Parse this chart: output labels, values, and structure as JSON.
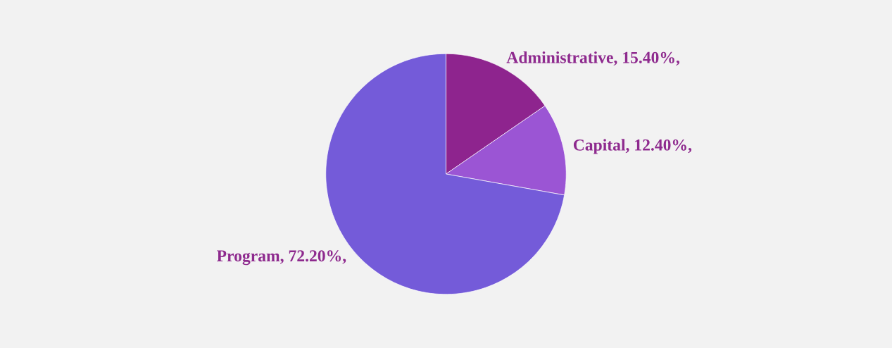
{
  "chart_data": {
    "type": "pie",
    "categories": [
      "Administrative",
      "Capital",
      "Program"
    ],
    "values": [
      15.4,
      12.4,
      72.2
    ],
    "value_labels": [
      "15.40%,",
      "12.40%,",
      "72.20%,"
    ],
    "colors": [
      "#8e248e",
      "#9b55d4",
      "#745bd9"
    ],
    "legend": false
  }
}
